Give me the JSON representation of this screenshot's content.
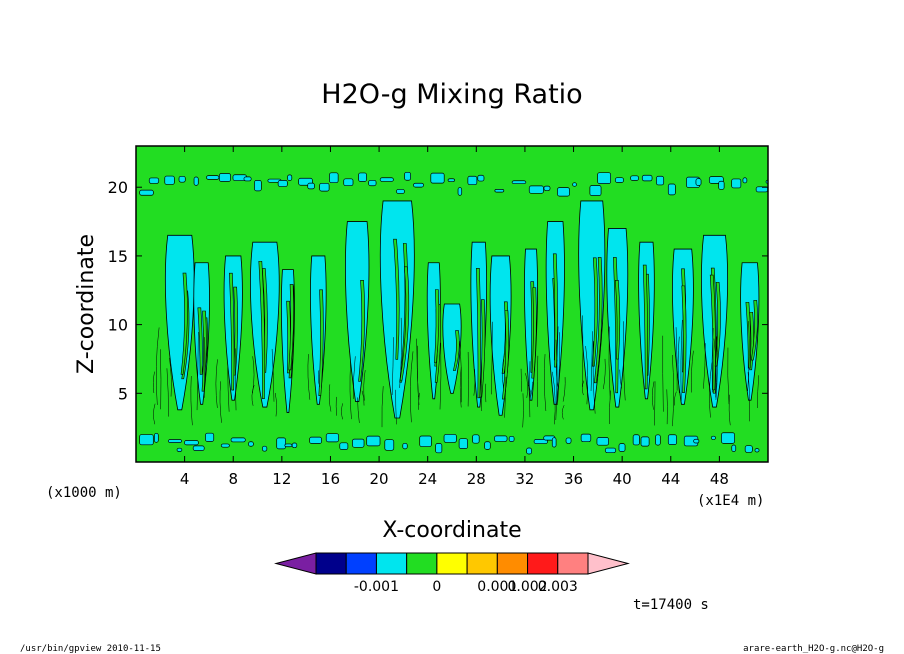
{
  "chart_data": {
    "type": "heatmap",
    "title": "H2O-g Mixing Ratio",
    "xlabel": "X-coordinate",
    "ylabel": "Z-coordinate",
    "x_unit_left": "(x1000 m)",
    "x_unit_right": "(x1E4 m)",
    "xlim": [
      0,
      52
    ],
    "ylim": [
      0,
      23
    ],
    "x_ticks": [
      "4",
      "8",
      "12",
      "16",
      "20",
      "24",
      "28",
      "32",
      "36",
      "40",
      "44",
      "48"
    ],
    "y_ticks": [
      "5",
      "10",
      "15",
      "20"
    ],
    "grid": false,
    "colorbar": {
      "colors": [
        "#7a1fa2",
        "#00008b",
        "#0040ff",
        "#00e5ee",
        "#22dd22",
        "#ffff00",
        "#ffc800",
        "#ff8c00",
        "#ff1a1a",
        "#ff8080",
        "#ffc0cb"
      ],
      "tick_labels": [
        "-0.001",
        "0",
        "0.001",
        "0.002",
        "0.003"
      ],
      "tick_after_bin": [
        2,
        4,
        6,
        7,
        8
      ]
    },
    "background_color": "#22dd22",
    "feature_color": "#00e5ee",
    "plumes": [
      {
        "x": 3.6,
        "base": 3.8,
        "top": 16.5,
        "w": 2.2
      },
      {
        "x": 5.4,
        "base": 4.2,
        "top": 14.5,
        "w": 1.2
      },
      {
        "x": 8.0,
        "base": 4.5,
        "top": 15.0,
        "w": 1.4
      },
      {
        "x": 10.6,
        "base": 4.0,
        "top": 16.0,
        "w": 2.2
      },
      {
        "x": 12.5,
        "base": 3.6,
        "top": 14.0,
        "w": 1.0
      },
      {
        "x": 15.0,
        "base": 4.2,
        "top": 15.0,
        "w": 1.2
      },
      {
        "x": 18.2,
        "base": 4.4,
        "top": 17.5,
        "w": 1.8
      },
      {
        "x": 21.5,
        "base": 3.2,
        "top": 19.0,
        "w": 2.6
      },
      {
        "x": 24.5,
        "base": 4.6,
        "top": 14.5,
        "w": 1.0
      },
      {
        "x": 26.0,
        "base": 5.0,
        "top": 11.5,
        "w": 1.4
      },
      {
        "x": 28.2,
        "base": 4.0,
        "top": 16.0,
        "w": 1.2
      },
      {
        "x": 30.0,
        "base": 3.4,
        "top": 15.0,
        "w": 1.6
      },
      {
        "x": 32.5,
        "base": 4.5,
        "top": 15.5,
        "w": 1.0
      },
      {
        "x": 34.5,
        "base": 4.2,
        "top": 17.5,
        "w": 1.4
      },
      {
        "x": 37.5,
        "base": 3.8,
        "top": 19.0,
        "w": 2.0
      },
      {
        "x": 39.6,
        "base": 4.0,
        "top": 17.0,
        "w": 1.6
      },
      {
        "x": 42.0,
        "base": 4.6,
        "top": 16.0,
        "w": 1.2
      },
      {
        "x": 45.0,
        "base": 4.2,
        "top": 15.5,
        "w": 1.6
      },
      {
        "x": 47.6,
        "base": 4.0,
        "top": 16.5,
        "w": 2.0
      },
      {
        "x": 50.5,
        "base": 4.5,
        "top": 14.5,
        "w": 1.4
      }
    ],
    "bands": [
      {
        "z_min": 19.6,
        "z_max": 20.8,
        "label": "upper band"
      },
      {
        "z_min": 0.8,
        "z_max": 1.8,
        "label": "lower band"
      }
    ],
    "annotation_time": "t=17400 s"
  },
  "footer": {
    "left": "/usr/bin/gpview  2010-11-15",
    "right": "arare-earth_H2O-g.nc@H2O-g"
  }
}
